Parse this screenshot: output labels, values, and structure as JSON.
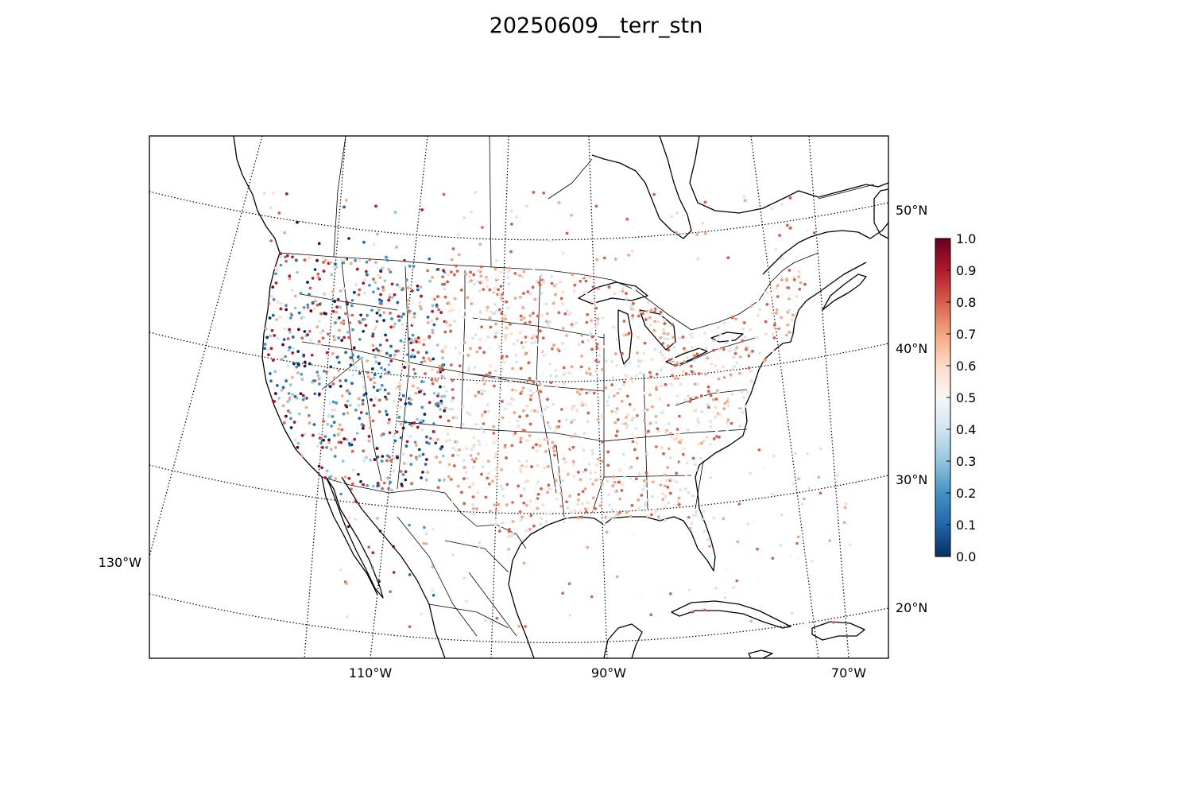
{
  "title": "20250609__terr_stn",
  "map": {
    "projection": "lambert-conformal",
    "extent_label": "North America (CONUS focus)",
    "lat_ticks": [
      "50°N",
      "40°N",
      "30°N",
      "20°N"
    ],
    "lon_ticks": [
      "110°W",
      "90°W",
      "70°W"
    ],
    "lon_left_tick": "130°W",
    "graticule_style": "dotted"
  },
  "colorbar": {
    "colormap": "RdBu_r",
    "min": 0.0,
    "max": 1.0,
    "ticks": [
      "0.0",
      "0.1",
      "0.2",
      "0.3",
      "0.4",
      "0.5",
      "0.6",
      "0.7",
      "0.8",
      "0.9",
      "1.0"
    ],
    "colors": [
      "#053061",
      "#2166ac",
      "#4393c3",
      "#92c5de",
      "#d1e5f0",
      "#f7f7f7",
      "#fddbc7",
      "#f4a582",
      "#d6604d",
      "#b2182b",
      "#67001f"
    ]
  },
  "stations": {
    "marker": "dot",
    "value_range": [
      0.0,
      1.0
    ]
  }
}
